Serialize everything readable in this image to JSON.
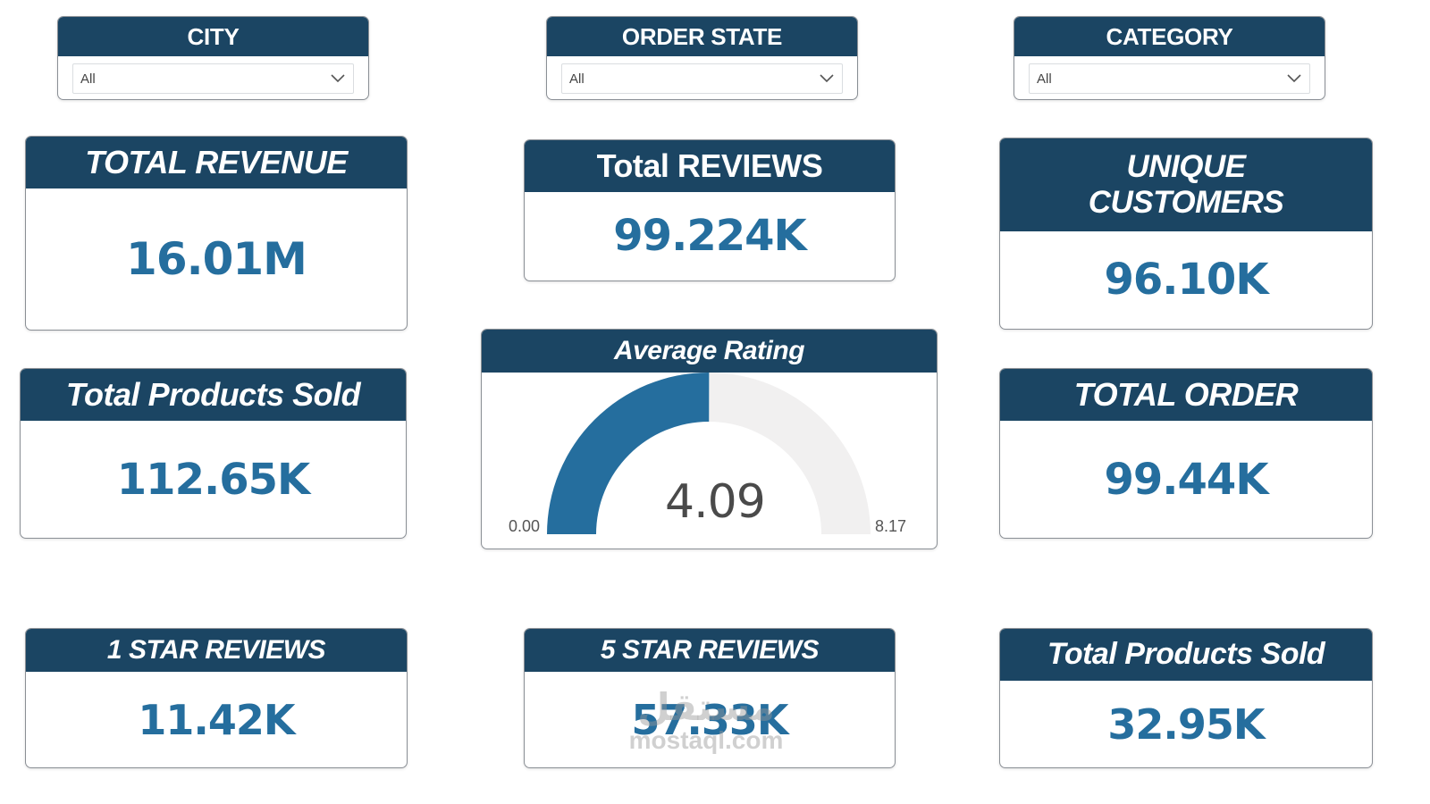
{
  "filters": {
    "city": {
      "label": "CITY",
      "value": "All"
    },
    "order_state": {
      "label": "ORDER STATE",
      "value": "All"
    },
    "category": {
      "label": "CATEGORY",
      "value": "All"
    }
  },
  "cards": {
    "total_revenue": {
      "title": "TOTAL REVENUE",
      "value": "16.01M"
    },
    "total_reviews": {
      "title": "Total REVIEWS",
      "value": "99.224K"
    },
    "unique_customers": {
      "title_line1": "UNIQUE",
      "title_line2": "CUSTOMERS",
      "value": "96.10K"
    },
    "total_products_sold": {
      "title": "Total Products Sold",
      "value": "112.65K"
    },
    "total_order": {
      "title": "TOTAL ORDER",
      "value": "99.44K"
    },
    "one_star_reviews": {
      "title": "1 STAR REVIEWS",
      "value": "11.42K"
    },
    "five_star_reviews": {
      "title": "5 STAR REVIEWS",
      "value": "57.33K"
    },
    "total_products_sold_2": {
      "title": "Total Products Sold",
      "value": "32.95K"
    }
  },
  "gauge": {
    "title": "Average Rating",
    "value": 4.09,
    "value_label": "4.09",
    "min": 0,
    "max": 8.17,
    "min_label": "0.00",
    "max_label": "8.17",
    "fill_color": "#256e9e",
    "track_color": "#f1f0f0"
  },
  "watermark": {
    "arabic": "مستقل",
    "latin": "mostaql.com"
  },
  "colors": {
    "header": "#1b4563",
    "value": "#256e9e"
  }
}
